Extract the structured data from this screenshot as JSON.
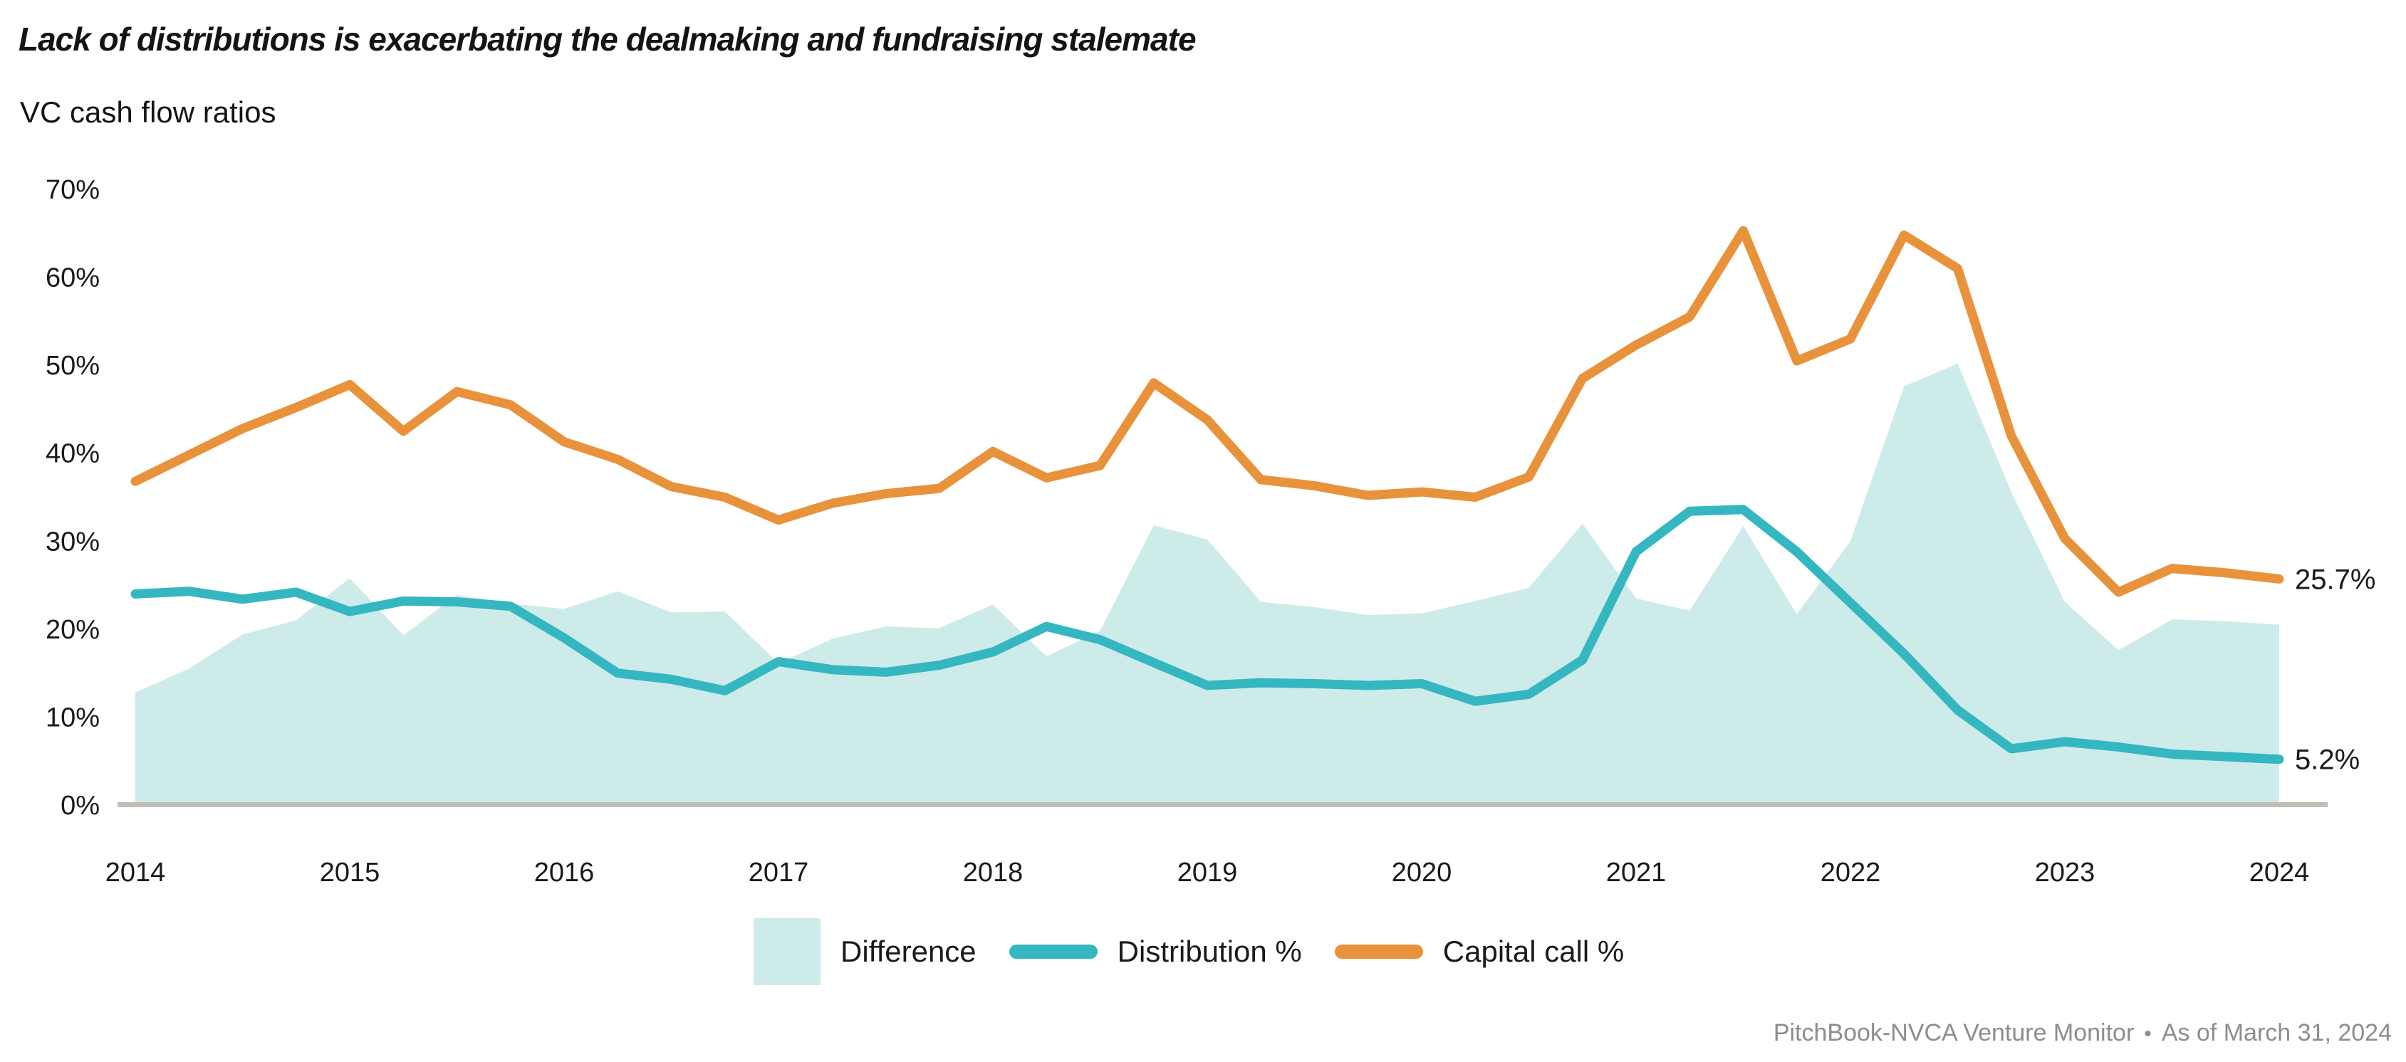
{
  "title": "Lack of distributions is exacerbating the dealmaking and fundraising stalemate",
  "subtitle": "VC cash flow ratios",
  "legend": {
    "items": [
      {
        "label": "Difference",
        "swatch": "difference_fill"
      },
      {
        "label": "Distribution %",
        "swatch": "distribution"
      },
      {
        "label": "Capital call %",
        "swatch": "capital_call"
      }
    ]
  },
  "footer": {
    "source": "PitchBook-NVCA Venture Monitor",
    "separator": "•",
    "as_of": "As of March 31, 2024"
  },
  "colors": {
    "capital_call": "#E8933B",
    "distribution": "#35B7C2",
    "difference_fill": "#CDEBE9",
    "axis_line": "#C1BEB6",
    "text": "#1A1A1A",
    "muted_text": "#8D8D8D"
  },
  "chart_data": {
    "type": "area",
    "subtype": "area + two lines, quarterly data 2014Q1 through 2024Q1 (41 points)",
    "title": "VC cash flow ratios",
    "xlabel": "",
    "ylabel": "",
    "ylim": [
      0,
      70
    ],
    "grid": false,
    "legend_position": "bottom-center",
    "y_ticks": [
      {
        "label": "70%",
        "value": 70
      },
      {
        "label": "60%",
        "value": 60
      },
      {
        "label": "50%",
        "value": 50
      },
      {
        "label": "40%",
        "value": 40
      },
      {
        "label": "30%",
        "value": 30
      },
      {
        "label": "20%",
        "value": 20
      },
      {
        "label": "10%",
        "value": 10
      },
      {
        "label": "0%",
        "value": 0
      }
    ],
    "x_tick_labels": [
      {
        "label": "2014",
        "index": 0
      },
      {
        "label": "2015",
        "index": 4
      },
      {
        "label": "2016",
        "index": 8
      },
      {
        "label": "2017",
        "index": 12
      },
      {
        "label": "2018",
        "index": 16
      },
      {
        "label": "2019",
        "index": 20
      },
      {
        "label": "2020",
        "index": 24
      },
      {
        "label": "2021",
        "index": 28
      },
      {
        "label": "2022",
        "index": 32
      },
      {
        "label": "2023",
        "index": 36
      },
      {
        "label": "2024",
        "index": 40
      }
    ],
    "series": [
      {
        "name": "Difference",
        "type": "area",
        "color": "#CDEBE9",
        "values": [
          12.8,
          15.5,
          19.4,
          21.0,
          25.8,
          19.3,
          23.9,
          22.9,
          22.3,
          24.3,
          21.9,
          22.0,
          16.1,
          18.9,
          20.3,
          20.1,
          22.8,
          16.9,
          19.8,
          31.8,
          30.2,
          23.1,
          22.5,
          21.6,
          21.8,
          23.2,
          24.7,
          32.0,
          23.5,
          22.1,
          31.7,
          21.7,
          30.0,
          47.6,
          50.2,
          35.6,
          23.1,
          17.6,
          21.1,
          20.9,
          20.5
        ]
      },
      {
        "name": "Distribution %",
        "type": "line",
        "color": "#35B7C2",
        "values": [
          24.0,
          24.3,
          23.4,
          24.2,
          22.0,
          23.2,
          23.1,
          22.6,
          19.0,
          15.0,
          14.3,
          13.0,
          16.3,
          15.4,
          15.1,
          15.9,
          17.4,
          20.3,
          18.8,
          16.2,
          13.6,
          13.9,
          13.8,
          13.6,
          13.8,
          11.8,
          12.6,
          16.5,
          28.8,
          33.4,
          33.6,
          28.8,
          23.0,
          17.2,
          10.8,
          6.4,
          7.2,
          6.6,
          5.8,
          5.5,
          5.2
        ]
      },
      {
        "name": "Capital call %",
        "type": "line",
        "color": "#E8933B",
        "values": [
          36.8,
          39.8,
          42.8,
          45.2,
          47.8,
          42.5,
          47.0,
          45.5,
          41.3,
          39.3,
          36.2,
          35.0,
          32.4,
          34.3,
          35.4,
          36.0,
          40.2,
          37.2,
          38.6,
          48.0,
          43.8,
          37.0,
          36.3,
          35.2,
          35.6,
          35.0,
          37.3,
          48.5,
          52.3,
          55.5,
          65.3,
          50.5,
          53.0,
          64.8,
          61.0,
          42.0,
          30.3,
          24.2,
          26.9,
          26.4,
          25.7
        ]
      }
    ],
    "annotations": [
      {
        "text": "25.7%",
        "series": "Capital call %",
        "value": 25.7
      },
      {
        "text": "5.2%",
        "series": "Distribution %",
        "value": 5.2
      }
    ]
  }
}
